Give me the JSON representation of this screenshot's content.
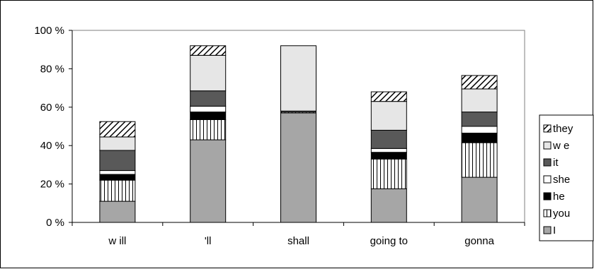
{
  "chart_data": {
    "type": "bar",
    "stacked": true,
    "title": "",
    "xlabel": "",
    "ylabel": "",
    "ylim": [
      0,
      100
    ],
    "y_ticks": [
      "0 %",
      "20 %",
      "40 %",
      "60 %",
      "80 %",
      "100 %"
    ],
    "grid": false,
    "legend_position": "right",
    "categories": [
      "w ill",
      "'ll",
      "shall",
      "going to",
      "gonna"
    ],
    "series": [
      {
        "name": "I",
        "pattern": "solid-gray",
        "color": "#a6a6a6",
        "values": [
          11,
          43,
          57,
          17.5,
          23.5
        ]
      },
      {
        "name": "you",
        "pattern": "vertical-lines",
        "color": "#ffffff",
        "values": [
          11,
          10.5,
          0.5,
          15.5,
          18
        ]
      },
      {
        "name": "he",
        "pattern": "solid-black",
        "color": "#000000",
        "values": [
          3,
          4,
          0,
          3.5,
          5
        ]
      },
      {
        "name": "she",
        "pattern": "solid-white",
        "color": "#ffffff",
        "values": [
          2,
          3,
          0.5,
          2,
          3.5
        ]
      },
      {
        "name": "it",
        "pattern": "solid-darkgray",
        "color": "#595959",
        "values": [
          10.5,
          8,
          0,
          9.5,
          7.5
        ]
      },
      {
        "name": "w e",
        "pattern": "solid-lightgray",
        "color": "#e6e6e6",
        "values": [
          7,
          18.5,
          34,
          15,
          12
        ]
      },
      {
        "name": "they",
        "pattern": "diagonal-lines",
        "color": "#ffffff",
        "values": [
          8,
          5,
          0,
          5,
          7
        ]
      }
    ]
  }
}
